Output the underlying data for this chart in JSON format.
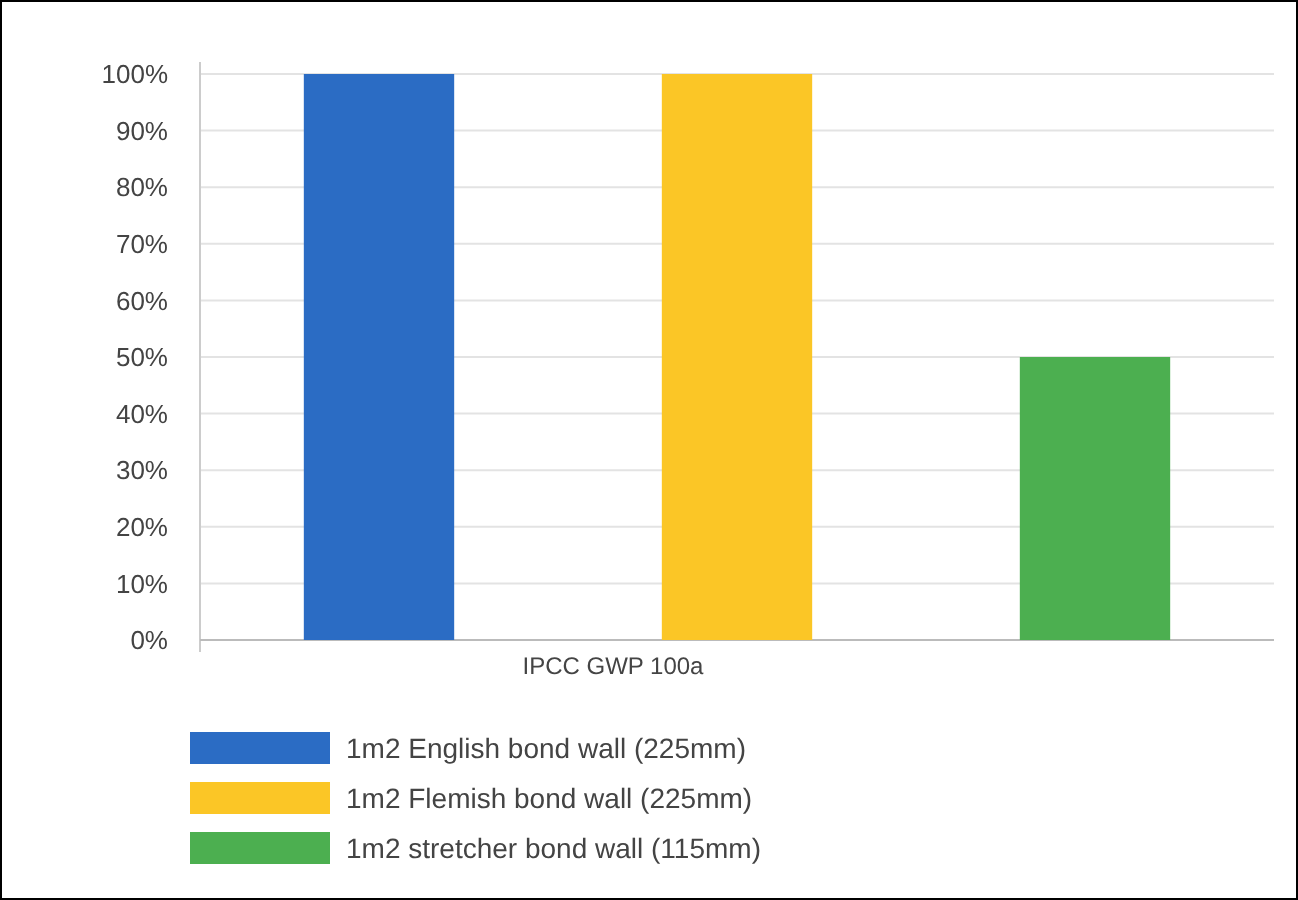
{
  "chart_data": {
    "type": "bar",
    "categories": [
      "IPCC GWP 100a"
    ],
    "series": [
      {
        "name": "1m2 English bond wall (225mm)",
        "color": "#2b6cc4",
        "values": [
          100
        ]
      },
      {
        "name": "1m2 Flemish bond wall (225mm)",
        "color": "#fbc626",
        "values": [
          100
        ]
      },
      {
        "name": "1m2 stretcher bond wall (115mm)",
        "color": "#4caf50",
        "values": [
          50
        ]
      }
    ],
    "ylim": [
      0,
      100
    ],
    "yticks": [
      {
        "value": 0,
        "label": "0%"
      },
      {
        "value": 10,
        "label": "10%"
      },
      {
        "value": 20,
        "label": "20%"
      },
      {
        "value": 30,
        "label": "30%"
      },
      {
        "value": 40,
        "label": "40%"
      },
      {
        "value": 50,
        "label": "50%"
      },
      {
        "value": 60,
        "label": "60%"
      },
      {
        "value": 70,
        "label": "70%"
      },
      {
        "value": 80,
        "label": "80%"
      },
      {
        "value": 90,
        "label": "90%"
      },
      {
        "value": 100,
        "label": "100%"
      }
    ],
    "grid": "y",
    "legend": "bottom"
  }
}
